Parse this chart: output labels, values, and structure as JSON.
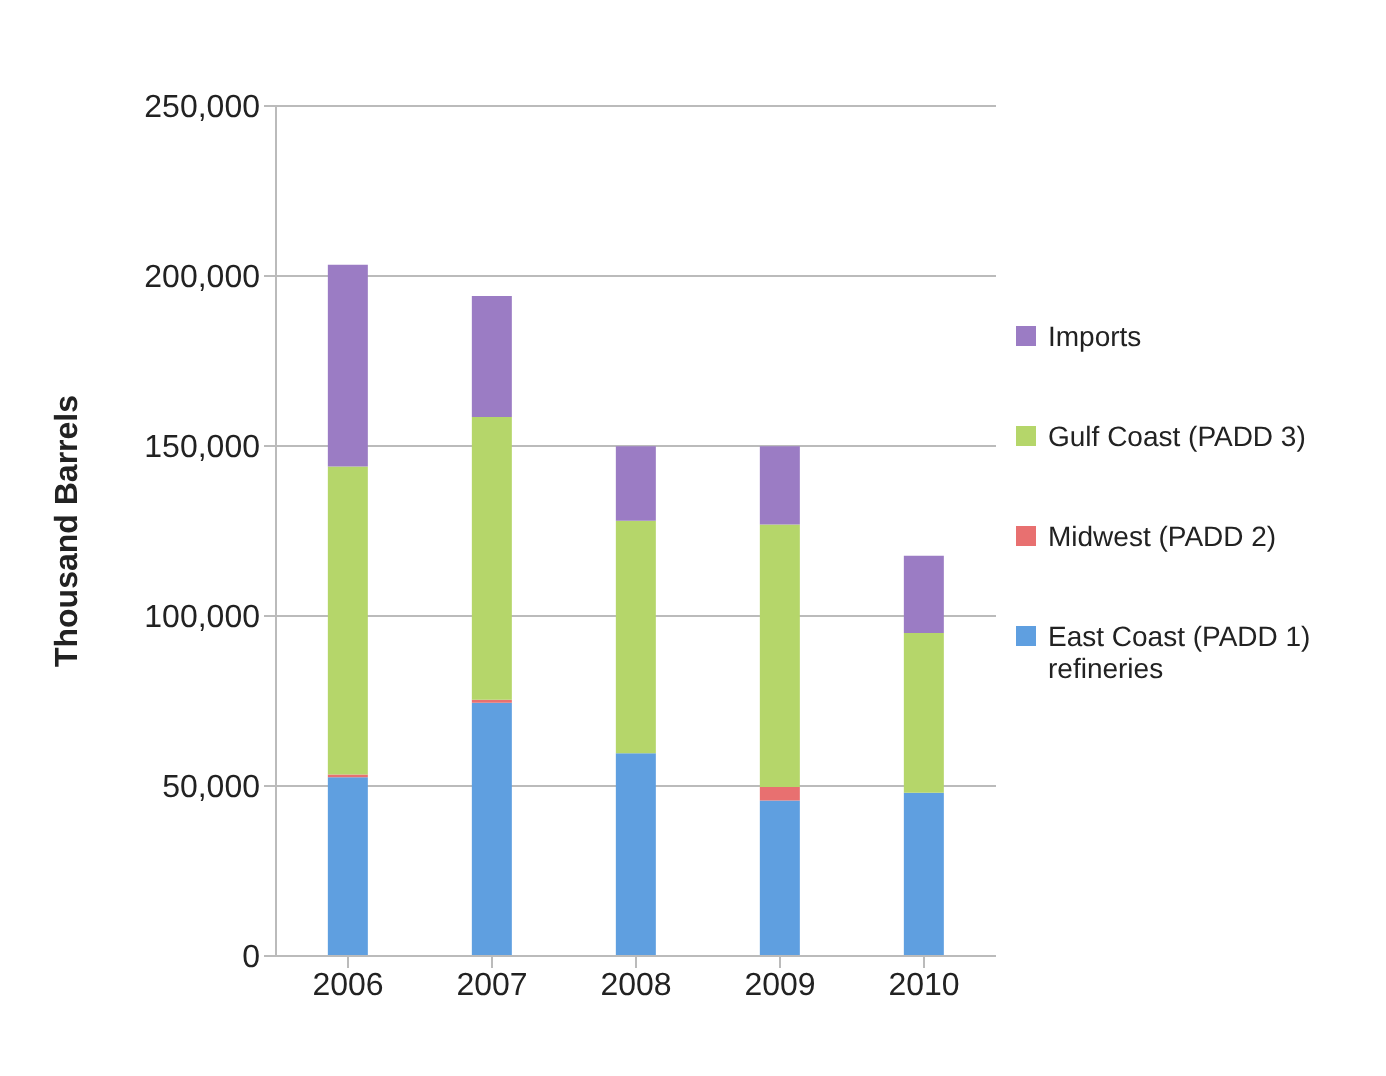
{
  "chart_data": {
    "type": "bar",
    "ylabel": "Thousand Barrels",
    "categories": [
      "2006",
      "2007",
      "2008",
      "2009",
      "2010"
    ],
    "stacked": true,
    "grid": "y",
    "legend": "right",
    "ylim": [
      0,
      250000
    ],
    "yticks": [
      {
        "value": 0,
        "label": "0"
      },
      {
        "value": 50000,
        "label": "50,000"
      },
      {
        "value": 100000,
        "label": "100,000"
      },
      {
        "value": 150000,
        "label": "150,000"
      },
      {
        "value": 200000,
        "label": "200,000"
      },
      {
        "value": 250000,
        "label": "250,000"
      }
    ],
    "series": [
      {
        "name": "East Coast (PADD 1) refineries",
        "color": "#5f9fe0",
        "values": [
          52600,
          74500,
          59600,
          45700,
          48000
        ]
      },
      {
        "name": "Midwest (PADD 2)",
        "color": "#e87070",
        "values": [
          800,
          900,
          0,
          4000,
          0
        ]
      },
      {
        "name": "Gulf Coast (PADD 3)",
        "color": "#b5d66a",
        "values": [
          90600,
          83100,
          68400,
          77200,
          47000
        ]
      },
      {
        "name": "Imports",
        "color": "#9b7cc4",
        "values": [
          59300,
          35600,
          21900,
          23000,
          22700
        ]
      }
    ]
  }
}
